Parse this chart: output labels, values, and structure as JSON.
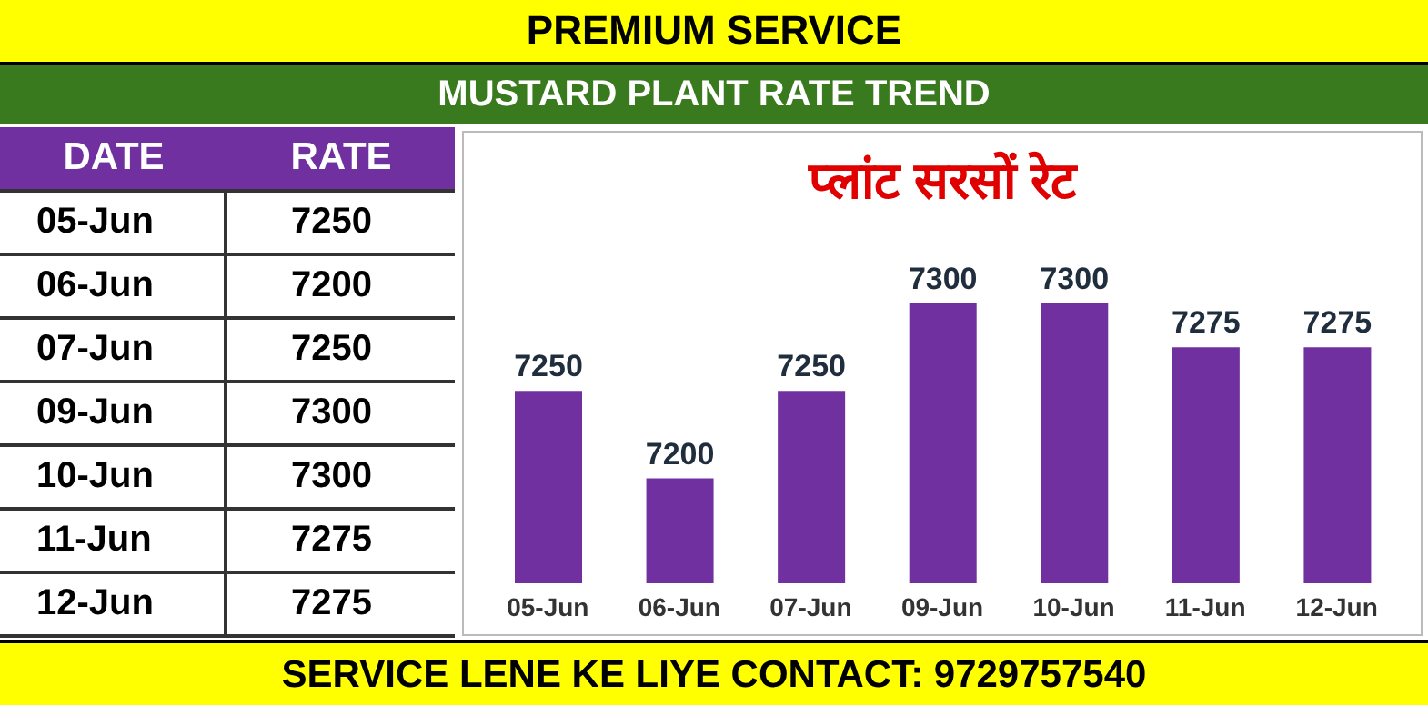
{
  "chart_data": {
    "type": "bar",
    "title": "प्लांट सरसों रेट",
    "subtitle": "MUSTARD PLANT RATE TREND",
    "annotations": [
      "PREMIUM SERVICE",
      "DATE",
      "RATE",
      "SERVICE LENE KE LIYE CONTACT: 9729757540"
    ],
    "categories": [
      "05-Jun",
      "06-Jun",
      "07-Jun",
      "09-Jun",
      "10-Jun",
      "11-Jun",
      "12-Jun"
    ],
    "values": [
      7250,
      7200,
      7250,
      7300,
      7300,
      7275,
      7275
    ],
    "value_labels": [
      "7250",
      "7200",
      "7250",
      "7300",
      "7300",
      "7275",
      "7275"
    ],
    "color": "#7030a0",
    "ylim": [
      7140,
      7300
    ]
  }
}
